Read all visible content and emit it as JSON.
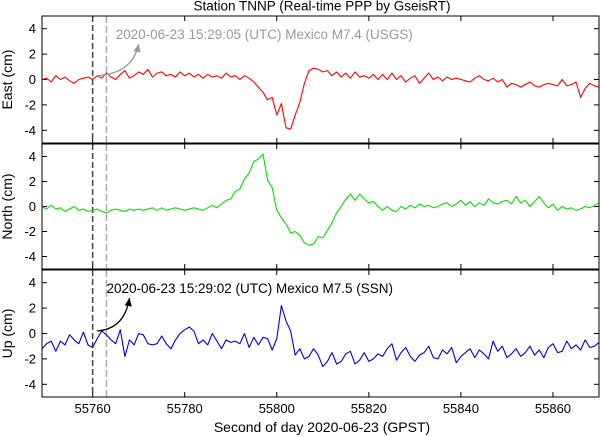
{
  "chart_data": {
    "type": "line",
    "title": "Station TNNP (Real-time PPP by GseisRT)",
    "xlabel": "Second of day 2020-06-23 (GPST)",
    "xlim": [
      55749,
      55870
    ],
    "xticks": [
      55760,
      55780,
      55800,
      55820,
      55840,
      55860
    ],
    "ylim": [
      -5,
      5
    ],
    "yticks": [
      -4,
      -2,
      0,
      2,
      4
    ],
    "event_lines": [
      {
        "name": "ssn-origin",
        "x": 55760,
        "style": "dark-dashed"
      },
      {
        "name": "usgs-origin",
        "x": 55763,
        "style": "gray-dashed"
      }
    ],
    "annotations": [
      {
        "name": "usgs-annotation",
        "panel": 0,
        "text": "2020-06-23 15:29:05 (UTC) Mexico M7.4 (USGS)",
        "color": "#999999",
        "text_x": 55765,
        "text_y": 3.6,
        "arrow_from": [
          55761,
          0.3
        ],
        "arrow_to": [
          55770,
          2.8
        ]
      },
      {
        "name": "ssn-annotation",
        "panel": 2,
        "text": "2020-06-23 15:29:02 (UTC) Mexico M7.5 (SSN)",
        "color": "#000000",
        "text_x": 55763,
        "text_y": 3.6,
        "arrow_from": [
          55761,
          0.2
        ],
        "arrow_to": [
          55768,
          2.8
        ]
      }
    ],
    "x_start": 55749,
    "x_step": 1,
    "series": [
      {
        "name": "East",
        "ylabel": "East (cm)",
        "color": "#ff0000",
        "values": [
          0.0,
          0.1,
          -0.2,
          0.3,
          0.0,
          0.2,
          -0.1,
          -0.3,
          0.0,
          0.1,
          0.2,
          0.0,
          0.3,
          0.1,
          0.5,
          0.2,
          0.0,
          0.4,
          0.7,
          0.1,
          0.3,
          0.6,
          0.4,
          0.8,
          0.2,
          0.5,
          0.6,
          0.3,
          0.4,
          0.2,
          0.6,
          0.3,
          0.5,
          0.2,
          0.4,
          0.1,
          0.4,
          0.2,
          0.3,
          0.1,
          0.5,
          0.2,
          0.3,
          0.0,
          0.3,
          0.1,
          -0.2,
          -0.6,
          -1.0,
          -1.6,
          -1.4,
          -2.8,
          -1.9,
          -3.8,
          -3.9,
          -2.8,
          -1.8,
          -0.3,
          0.7,
          0.9,
          0.8,
          0.6,
          0.7,
          0.3,
          0.6,
          0.2,
          0.5,
          0.1,
          0.6,
          0.2,
          0.3,
          0.1,
          0.4,
          0.0,
          0.4,
          0.0,
          0.5,
          0.0,
          0.3,
          -0.2,
          0.1,
          0.3,
          -0.3,
          0.1,
          0.5,
          0.0,
          0.2,
          -0.1,
          0.2,
          0.0,
          0.1,
          0.0,
          -0.1,
          -0.2,
          0.1,
          0.3,
          0.0,
          -0.1,
          0.1,
          -0.2,
          0.0,
          -0.6,
          -0.3,
          -0.4,
          -0.6,
          -0.4,
          -0.2,
          -0.5,
          -0.6,
          -0.4,
          -0.3,
          -0.4,
          -0.5,
          0.0,
          -0.5,
          -0.4,
          -0.2,
          -1.4,
          -0.7,
          -0.3,
          -0.5,
          -0.6
        ]
      },
      {
        "name": "North",
        "ylabel": "North (cm)",
        "color": "#00e000",
        "values": [
          0.0,
          -0.2,
          0.1,
          -0.2,
          -0.1,
          -0.4,
          -0.2,
          0.0,
          -0.3,
          -0.2,
          -0.4,
          -0.3,
          -0.2,
          -0.4,
          -0.5,
          -0.3,
          -0.2,
          -0.3,
          -0.4,
          -0.2,
          -0.3,
          -0.2,
          -0.3,
          -0.2,
          -0.1,
          -0.3,
          -0.1,
          -0.3,
          -0.2,
          -0.1,
          -0.2,
          -0.3,
          -0.2,
          -0.1,
          -0.2,
          -0.3,
          -0.1,
          0.1,
          -0.1,
          0.2,
          0.5,
          0.6,
          1.2,
          1.4,
          2.2,
          2.7,
          3.6,
          3.8,
          4.2,
          2.1,
          1.5,
          -0.3,
          -0.9,
          -1.4,
          -2.1,
          -2.0,
          -2.3,
          -2.9,
          -3.1,
          -3.0,
          -2.4,
          -2.5,
          -1.9,
          -1.3,
          -0.5,
          0.0,
          0.6,
          1.0,
          0.5,
          1.0,
          0.6,
          0.3,
          0.4,
          0.0,
          -0.3,
          0.0,
          -0.3,
          -0.4,
          0.0,
          -0.2,
          0.1,
          -0.1,
          0.2,
          0.0,
          0.1,
          -0.1,
          0.0,
          0.2,
          0.3,
          0.0,
          0.2,
          0.5,
          0.1,
          0.4,
          0.0,
          0.3,
          0.1,
          0.6,
          0.3,
          0.2,
          0.4,
          0.5,
          0.2,
          0.8,
          0.3,
          0.5,
          0.0,
          0.4,
          0.8,
          0.3,
          -0.1,
          0.2,
          -0.3,
          0.0,
          -0.2,
          -0.1,
          -0.3,
          -0.2,
          0.0,
          -0.1,
          0.1,
          0.3
        ]
      },
      {
        "name": "Up",
        "ylabel": "Up (cm)",
        "color": "#0000dd",
        "values": [
          -1.2,
          -0.8,
          -0.6,
          -1.4,
          -0.6,
          -0.9,
          -0.1,
          -0.5,
          -0.8,
          0.1,
          -0.9,
          -1.1,
          -0.4,
          0.2,
          -0.1,
          -0.5,
          -0.8,
          0.3,
          -1.8,
          -0.5,
          -0.9,
          0.0,
          -0.1,
          -0.8,
          -0.9,
          -0.8,
          -0.2,
          -0.8,
          -1.2,
          -0.5,
          0.0,
          0.3,
          0.5,
          0.2,
          -0.8,
          -0.5,
          -0.9,
          0.0,
          -0.6,
          -1.2,
          -0.5,
          -0.7,
          -0.6,
          -0.8,
          0.0,
          -1.1,
          -0.3,
          -0.9,
          -0.3,
          -0.4,
          -1.3,
          -0.4,
          2.2,
          1.0,
          0.2,
          -1.7,
          -1.2,
          -2.0,
          -1.8,
          -1.2,
          -1.7,
          -2.6,
          -2.2,
          -1.5,
          -2.4,
          -2.2,
          -1.6,
          -1.4,
          -2.4,
          -2.1,
          -1.5,
          -2.2,
          -2.0,
          -1.6,
          -1.8,
          -1.2,
          -0.8,
          -2.1,
          -1.5,
          -1.1,
          -1.8,
          -2.2,
          -1.7,
          -1.5,
          -1.0,
          -1.9,
          -2.0,
          -1.3,
          -1.6,
          -1.1,
          -2.3,
          -1.8,
          -1.5,
          -1.2,
          -1.9,
          -1.3,
          -1.6,
          -2.0,
          -0.6,
          -1.4,
          -1.0,
          -1.9,
          -1.6,
          -1.2,
          -1.8,
          -1.5,
          -1.0,
          -1.7,
          -1.3,
          -1.9,
          -1.1,
          -0.8,
          -1.5,
          -1.4,
          -0.6,
          -1.2,
          -0.9,
          -1.3,
          -0.5,
          -1.1,
          -1.0,
          -0.7
        ]
      }
    ]
  }
}
